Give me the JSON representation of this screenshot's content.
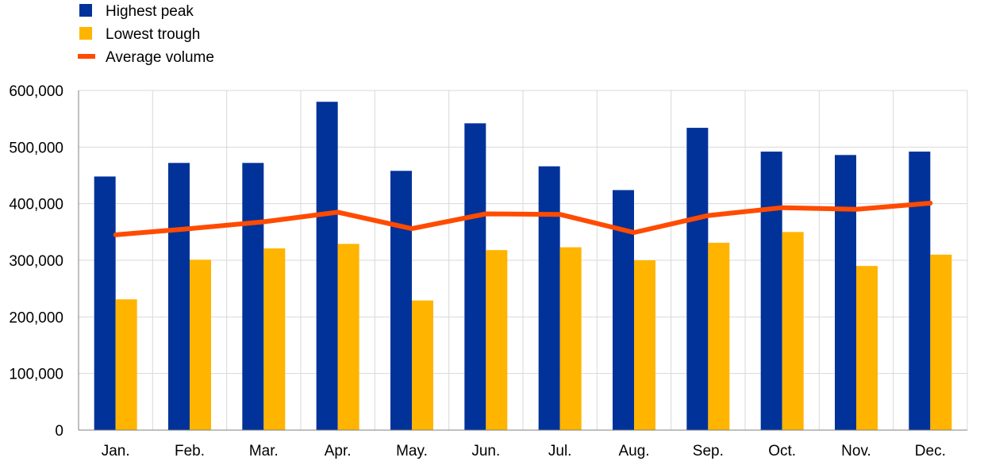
{
  "colors": {
    "peak": "#003299",
    "trough": "#FFB400",
    "average": "#FF4B00",
    "grid": "#D9D9D9",
    "axis": "#808080"
  },
  "legend": [
    {
      "key": "peak",
      "label": "Highest peak",
      "marker": "square"
    },
    {
      "key": "trough",
      "label": "Lowest trough",
      "marker": "square"
    },
    {
      "key": "average",
      "label": "Average volume",
      "marker": "line"
    }
  ],
  "chart_data": {
    "type": "bar",
    "title": "",
    "xlabel": "",
    "ylabel": "",
    "categories": [
      "Jan.",
      "Feb.",
      "Mar.",
      "Apr.",
      "May.",
      "Jun.",
      "Jul.",
      "Aug.",
      "Sep.",
      "Oct.",
      "Nov.",
      "Dec."
    ],
    "ylim": [
      0,
      600000
    ],
    "yticks": [
      0,
      100000,
      200000,
      300000,
      400000,
      500000,
      600000
    ],
    "ytick_labels": [
      "0",
      "100,000",
      "200,000",
      "300,000",
      "400,000",
      "500,000",
      "600,000"
    ],
    "grid": true,
    "legend_position": "top-left",
    "series": [
      {
        "name": "Highest peak",
        "type": "bar",
        "color": "#003299",
        "values": [
          448000,
          472000,
          472000,
          580000,
          458000,
          542000,
          466000,
          424000,
          534000,
          492000,
          486000,
          492000
        ]
      },
      {
        "name": "Lowest trough",
        "type": "bar",
        "color": "#FFB400",
        "values": [
          231000,
          301000,
          321000,
          329000,
          229000,
          318000,
          323000,
          300000,
          331000,
          350000,
          290000,
          310000
        ]
      },
      {
        "name": "Average volume",
        "type": "line",
        "color": "#FF4B00",
        "values": [
          345000,
          356000,
          368000,
          385000,
          356000,
          382000,
          381000,
          349000,
          379000,
          393000,
          390000,
          401000
        ]
      }
    ]
  }
}
